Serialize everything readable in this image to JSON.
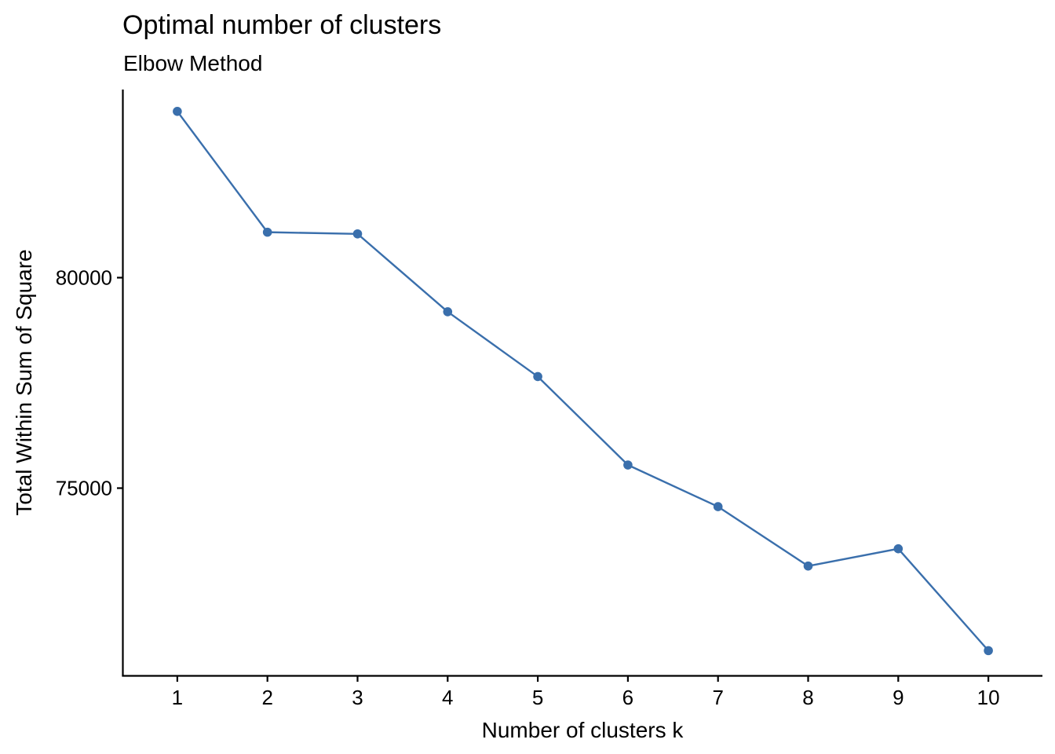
{
  "chart_data": {
    "type": "line",
    "title": "Optimal number of clusters",
    "subtitle": "Elbow Method",
    "xlabel": "Number of clusters k",
    "ylabel": "Total Within Sum of Square",
    "x": [
      1,
      2,
      3,
      4,
      5,
      6,
      7,
      8,
      9,
      10
    ],
    "x_tick_labels": [
      "1",
      "2",
      "3",
      "4",
      "5",
      "6",
      "7",
      "8",
      "9",
      "10"
    ],
    "y_ticks": [
      75000,
      80000
    ],
    "y_tick_labels": [
      "75000",
      "80000"
    ],
    "xlim": [
      0.4,
      10.6
    ],
    "ylim": [
      70550,
      84450
    ],
    "grid": false,
    "legend": "none",
    "series": [
      {
        "values": [
          83950,
          81080,
          81040,
          79190,
          77650,
          75550,
          74560,
          73150,
          73560,
          71140
        ]
      }
    ],
    "colors": {
      "series": "#3a6fac",
      "axis": "#000000"
    }
  }
}
